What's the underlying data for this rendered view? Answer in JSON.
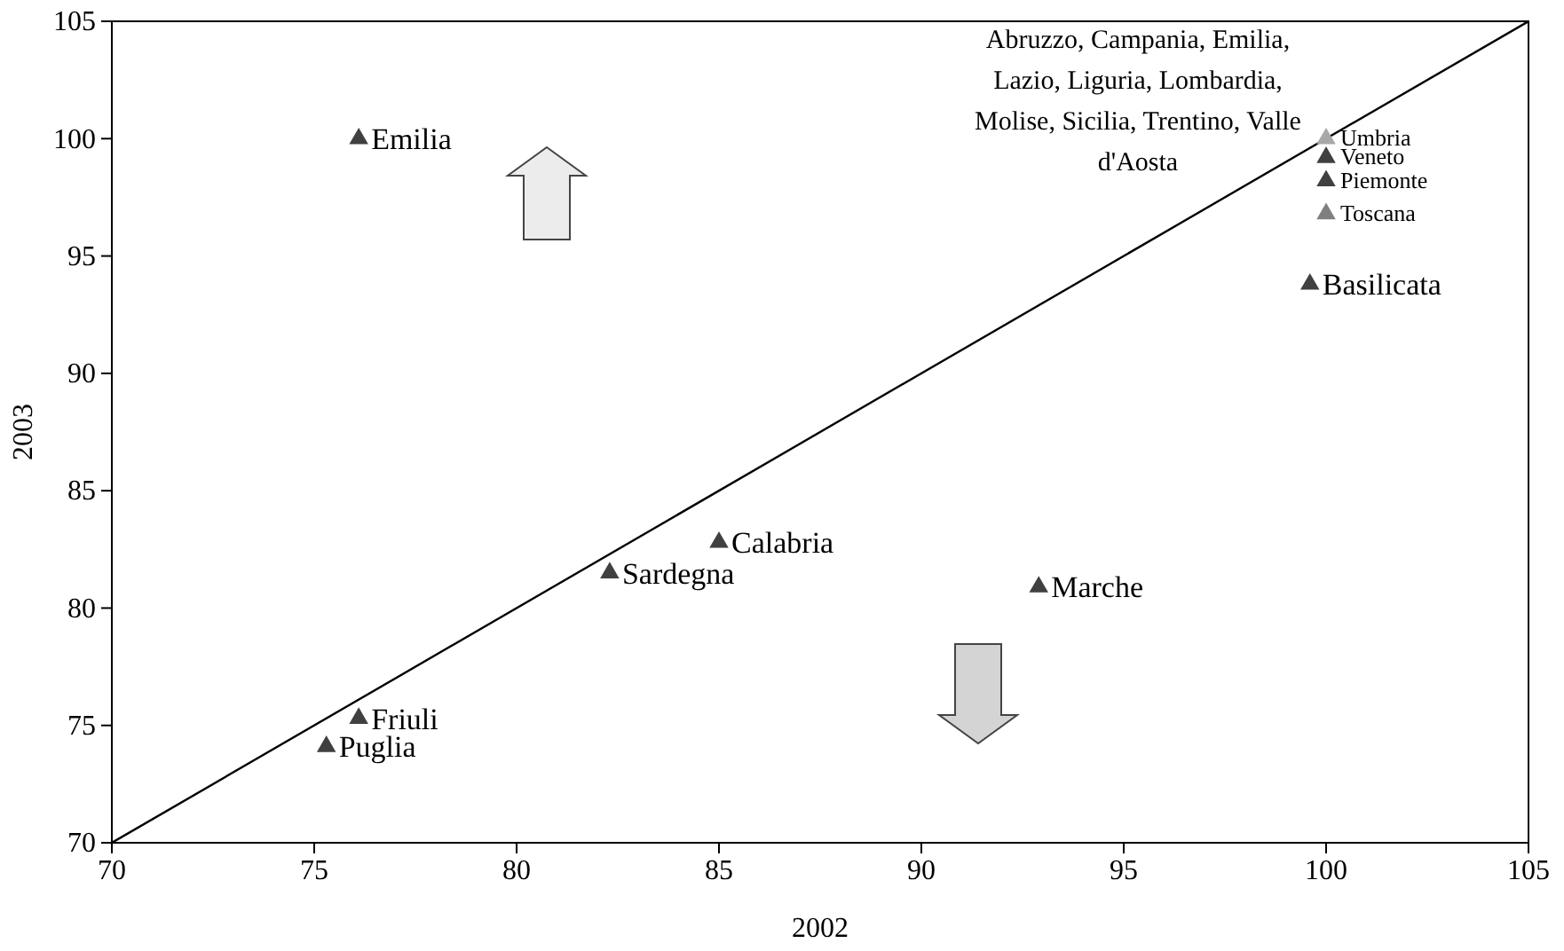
{
  "chart_data": {
    "type": "scatter",
    "xlabel": "2002",
    "ylabel": "2003",
    "xlim": [
      70,
      105
    ],
    "ylim": [
      70,
      105
    ],
    "xticks": [
      70,
      75,
      80,
      85,
      90,
      95,
      100,
      105
    ],
    "yticks": [
      70,
      75,
      80,
      85,
      90,
      95,
      100,
      105
    ],
    "marker": "triangle",
    "series": [
      {
        "type": "line",
        "x": [
          70,
          105
        ],
        "values": [
          70,
          105
        ],
        "color": "#000000",
        "marker": "none",
        "line_style": "solid"
      },
      {
        "name": "Emilia",
        "x": [
          76.1
        ],
        "values": [
          100
        ],
        "color": "#404040"
      },
      {
        "name": "Puglia",
        "x": [
          75.3
        ],
        "values": [
          74.1
        ],
        "color": "#404040"
      },
      {
        "name": "Friuli",
        "x": [
          76.1
        ],
        "values": [
          75.3
        ],
        "color": "#404040"
      },
      {
        "name": "Sardegna",
        "x": [
          82.3
        ],
        "values": [
          81.5
        ],
        "color": "#404040"
      },
      {
        "name": "Calabria",
        "x": [
          85
        ],
        "values": [
          82.8
        ],
        "color": "#404040"
      },
      {
        "name": "Marche",
        "x": [
          92.9
        ],
        "values": [
          80.9
        ],
        "color": "#404040"
      },
      {
        "name": "Basilicata",
        "x": [
          99.6
        ],
        "values": [
          93.8
        ],
        "color": "#404040"
      },
      {
        "name": "Toscana",
        "x": [
          100
        ],
        "values": [
          96.8
        ],
        "color": "#808080"
      },
      {
        "name": "Piemonte",
        "x": [
          100
        ],
        "values": [
          98.2
        ],
        "color": "#404040"
      },
      {
        "name": "Veneto",
        "x": [
          100
        ],
        "values": [
          99.2
        ],
        "color": "#404040"
      },
      {
        "name": "Umbria",
        "x": [
          100
        ],
        "values": [
          100
        ],
        "color": "#a8a8a8"
      }
    ],
    "annotations": [
      {
        "text": "Abruzzo, Campania, Emilia, Lazio, Liguria, Lombardia, Molise, Sicilia, Trentino, Valle d'Aosta",
        "x": 100,
        "y": 100
      }
    ]
  }
}
